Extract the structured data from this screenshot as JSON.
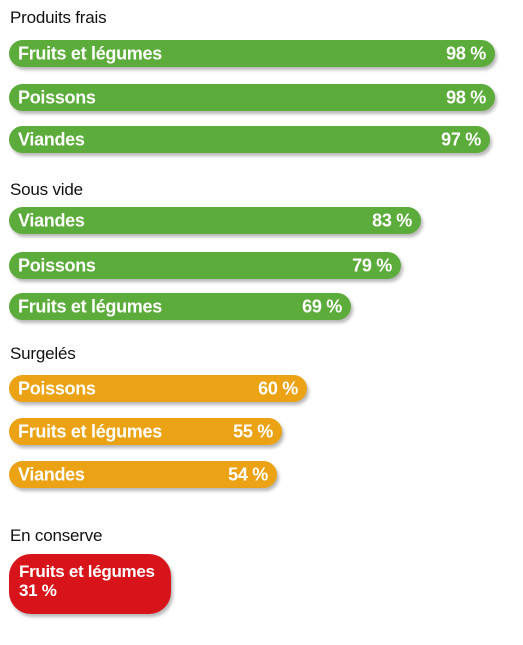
{
  "colors": {
    "produits_frais": "#5cac3b",
    "sous_vide": "#5cac3b",
    "surgeles": "#eba214",
    "en_conserve": "#d8141b"
  },
  "chart_data": {
    "type": "bar",
    "orientation": "horizontal",
    "unit": "%",
    "xlim": [
      0,
      100
    ],
    "groups": [
      {
        "key": "produits_frais",
        "title": "Produits frais",
        "bars": [
          {
            "label": "Fruits et légumes",
            "value": 98,
            "value_label": "98 %"
          },
          {
            "label": "Poissons",
            "value": 98,
            "value_label": "98 %"
          },
          {
            "label": "Viandes",
            "value": 97,
            "value_label": "97 %"
          }
        ]
      },
      {
        "key": "sous_vide",
        "title": "Sous vide",
        "bars": [
          {
            "label": "Viandes",
            "value": 83,
            "value_label": "83 %"
          },
          {
            "label": "Poissons",
            "value": 79,
            "value_label": "79 %"
          },
          {
            "label": "Fruits et légumes",
            "value": 69,
            "value_label": "69 %"
          }
        ]
      },
      {
        "key": "surgeles",
        "title": "Surgelés",
        "bars": [
          {
            "label": "Poissons",
            "value": 60,
            "value_label": "60 %"
          },
          {
            "label": "Fruits et légumes",
            "value": 55,
            "value_label": "55 %"
          },
          {
            "label": "Viandes",
            "value": 54,
            "value_label": "54 %"
          }
        ]
      },
      {
        "key": "en_conserve",
        "title": "En conserve",
        "bars": [
          {
            "label": "Fruits et légumes",
            "value": 31,
            "value_label": "31 %"
          }
        ]
      }
    ]
  }
}
